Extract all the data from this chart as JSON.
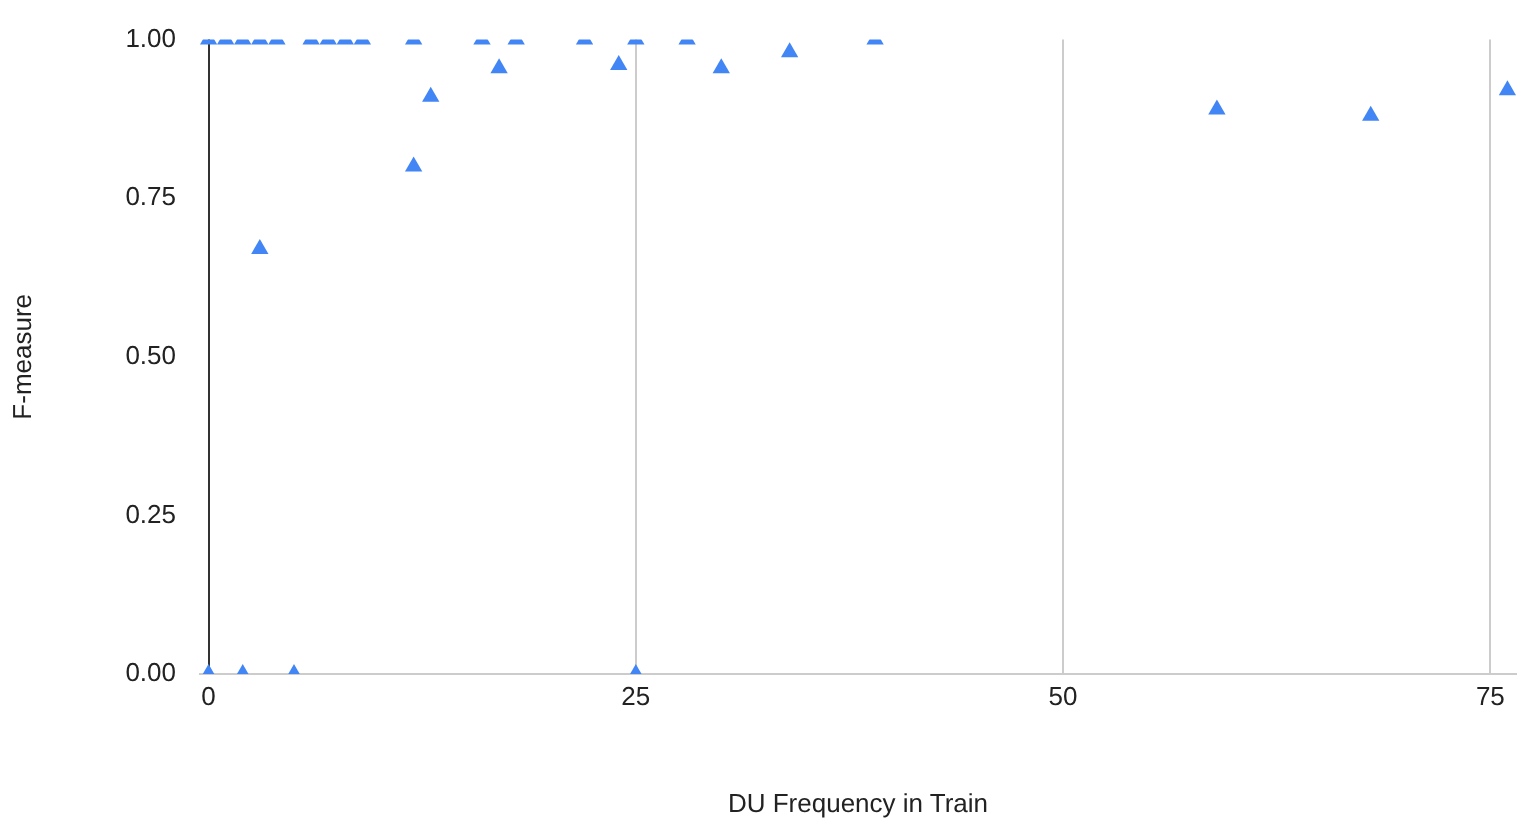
{
  "chart_data": {
    "type": "scatter",
    "xlabel": "DU Frequency in Train",
    "ylabel": "F-measure",
    "series": [
      {
        "color": "#4285f4",
        "x": [
          0,
          1,
          2,
          3,
          4,
          6,
          7,
          8,
          9,
          12,
          16,
          18,
          22,
          25,
          28,
          39,
          3,
          12,
          13,
          17,
          24,
          30,
          34,
          59,
          68,
          76,
          0,
          2,
          5,
          25
        ],
        "values": [
          1,
          1,
          1,
          1,
          1,
          1,
          1,
          1,
          1,
          1,
          1,
          1,
          1,
          1,
          1,
          1,
          0.67,
          0.8,
          0.91,
          0.955,
          0.96,
          0.955,
          0.98,
          0.89,
          0.88,
          0.92,
          0,
          0,
          0,
          0
        ]
      }
    ],
    "xlim": [
      -0.5,
      76.5
    ],
    "xticks": [
      0,
      25,
      50,
      75
    ],
    "ylim": [
      0,
      1
    ],
    "yticks": [
      {
        "value": 0,
        "label": "0.00"
      },
      {
        "value": 0.25,
        "label": "0.25"
      },
      {
        "value": 0.5,
        "label": "0.50"
      },
      {
        "value": 0.75,
        "label": "0.75"
      },
      {
        "value": 1,
        "label": "1.00"
      }
    ],
    "grid": "x",
    "legend": false,
    "marker": "triangle"
  }
}
